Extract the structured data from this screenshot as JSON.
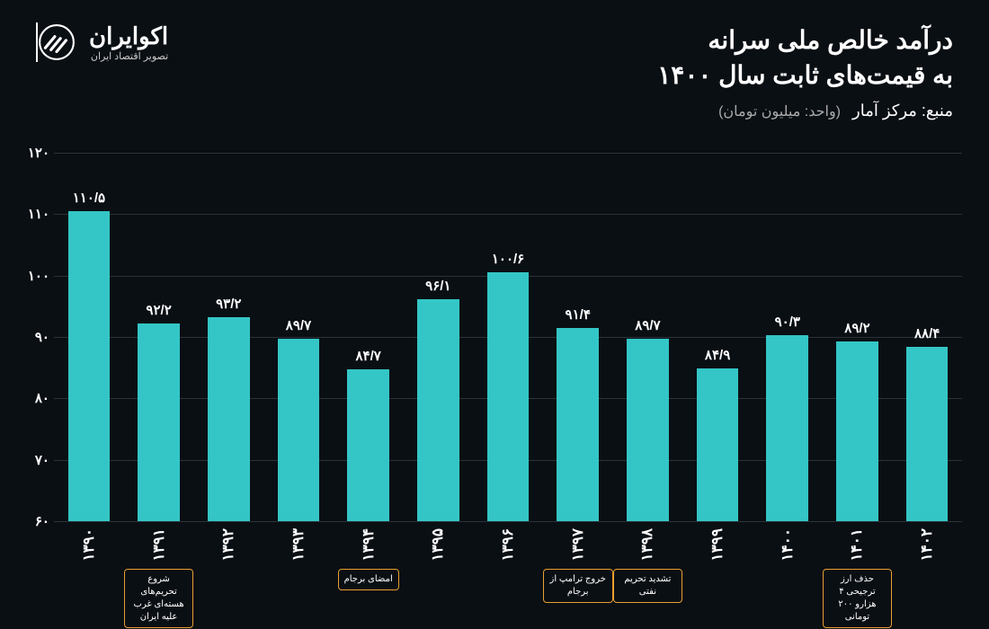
{
  "header": {
    "title_line1": "درآمد خالص ملی سرانه",
    "title_line2": "به قیمت‌های ثابت سال ۱۴۰۰",
    "source_label": "منبع: مرکز آمار",
    "unit_label": "(واحد: میلیون تومان)",
    "logo_main": "اکوایران",
    "logo_sub": "تصویر اقتصاد ایران"
  },
  "chart": {
    "type": "bar",
    "background_color": "#0a0f14",
    "bar_color": "#34c6c6",
    "grid_color": "#2a3338",
    "text_color": "#ffffff",
    "annotation_border": "#e8a030",
    "ylim": [
      60,
      120
    ],
    "ytick_step": 10,
    "yticks": [
      "۶۰",
      "۷۰",
      "۸۰",
      "۹۰",
      "۱۰۰",
      "۱۱۰",
      "۱۲۰"
    ],
    "bars": [
      {
        "year": "۱۳۹۰",
        "value": 110.5,
        "label": "۱۱۰/۵",
        "annotation": null
      },
      {
        "year": "۱۳۹۱",
        "value": 92.2,
        "label": "۹۲/۲",
        "annotation": "شروع تحریم‌های هسته‌ای غرب علیه ایران"
      },
      {
        "year": "۱۳۹۲",
        "value": 93.2,
        "label": "۹۳/۲",
        "annotation": null
      },
      {
        "year": "۱۳۹۳",
        "value": 89.7,
        "label": "۸۹/۷",
        "annotation": null
      },
      {
        "year": "۱۳۹۴",
        "value": 84.7,
        "label": "۸۴/۷",
        "annotation": "امضای برجام"
      },
      {
        "year": "۱۳۹۵",
        "value": 96.1,
        "label": "۹۶/۱",
        "annotation": null
      },
      {
        "year": "۱۳۹۶",
        "value": 100.6,
        "label": "۱۰۰/۶",
        "annotation": null
      },
      {
        "year": "۱۳۹۷",
        "value": 91.4,
        "label": "۹۱/۴",
        "annotation": "خروج ترامپ از برجام"
      },
      {
        "year": "۱۳۹۸",
        "value": 89.7,
        "label": "۸۹/۷",
        "annotation": "تشدید تحریم نفتی"
      },
      {
        "year": "۱۳۹۹",
        "value": 84.9,
        "label": "۸۴/۹",
        "annotation": null
      },
      {
        "year": "۱۴۰۰",
        "value": 90.3,
        "label": "۹۰/۳",
        "annotation": null
      },
      {
        "year": "۱۴۰۱",
        "value": 89.2,
        "label": "۸۹/۲",
        "annotation": "حذف ارز ترجیحی ۴ هزارو ۲۰۰ تومانی"
      },
      {
        "year": "۱۴۰۲",
        "value": 88.4,
        "label": "۸۸/۴",
        "annotation": null
      }
    ]
  }
}
